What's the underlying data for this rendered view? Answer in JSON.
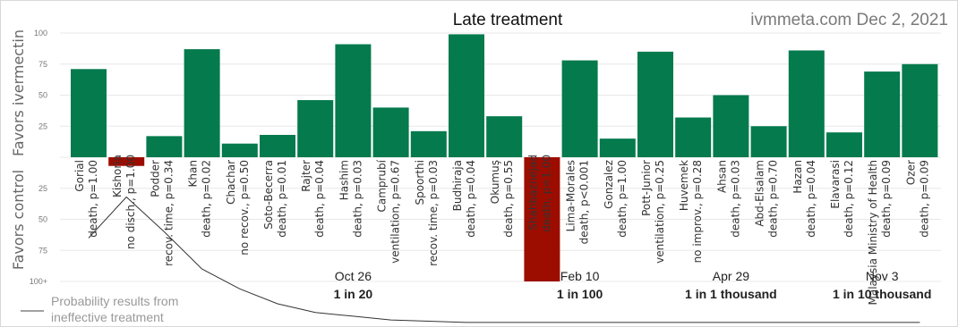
{
  "chart_data": {
    "type": "bar",
    "title": "Late treatment",
    "source": "ivmmeta.com Dec 2, 2021",
    "ylabel_top": "Favors ivermectin",
    "ylabel_bottom": "Favors control",
    "ylim": [
      -100,
      100
    ],
    "yticks": [
      {
        "v": 100,
        "label": "100"
      },
      {
        "v": 75,
        "label": "75"
      },
      {
        "v": 50,
        "label": "50"
      },
      {
        "v": 25,
        "label": "25"
      },
      {
        "v": -25,
        "label": "25"
      },
      {
        "v": -50,
        "label": "50"
      },
      {
        "v": -75,
        "label": "75"
      },
      {
        "v": -100,
        "label": "100+"
      }
    ],
    "colors": {
      "positive": "#047a4d",
      "negative": "#9c0d00",
      "line": "#333333",
      "grid": "#e8e8e8"
    },
    "categories": [
      {
        "study": "Gorial",
        "outcome": "death, p=1.00"
      },
      {
        "study": "Kishoria",
        "outcome": "no disch., p=1.00"
      },
      {
        "study": "Podder",
        "outcome": "recov. time, p=0.34"
      },
      {
        "study": "Khan",
        "outcome": "death, p=0.02"
      },
      {
        "study": "Chachar",
        "outcome": "no recov., p=0.50"
      },
      {
        "study": "Soto-Becerra",
        "outcome": "death, p=0.01"
      },
      {
        "study": "Rajter",
        "outcome": "death, p=0.04"
      },
      {
        "study": "Hashim",
        "outcome": "death, p=0.03"
      },
      {
        "study": "Camprubí",
        "outcome": "ventilation, p=0.67"
      },
      {
        "study": "Spoorthi",
        "outcome": "recov. time, p=0.03"
      },
      {
        "study": "Budhiraja",
        "outcome": "death, p=0.04"
      },
      {
        "study": "Okumuş",
        "outcome": "death, p=0.55"
      },
      {
        "study": "Shahbaznejad",
        "outcome": "death, p=1.00"
      },
      {
        "study": "Lima-Morales",
        "outcome": "death, p<0.001"
      },
      {
        "study": "Gonzalez",
        "outcome": "death, p=1.00"
      },
      {
        "study": "Pott-Junior",
        "outcome": "ventilation, p=0.25"
      },
      {
        "study": "Huvemek",
        "outcome": "no improv., p=0.28"
      },
      {
        "study": "Ahsan",
        "outcome": "death, p=0.03"
      },
      {
        "study": "Abd-Elsalam",
        "outcome": "death, p=0.70"
      },
      {
        "study": "Hazan",
        "outcome": "death, p=0.04"
      },
      {
        "study": "Elavarasi",
        "outcome": "death, p=0.12"
      },
      {
        "study": "Malaysia Ministry of Health",
        "outcome": "death, p=0.09"
      },
      {
        "study": "Ozer",
        "outcome": "death, p=0.09"
      }
    ],
    "values": [
      71,
      -7,
      17,
      87,
      11,
      18,
      46,
      91,
      40,
      21,
      99,
      33,
      -100,
      78,
      15,
      85,
      32,
      50,
      25,
      86,
      20,
      69,
      75
    ],
    "probability_curve": {
      "label_line1": "Probability results from",
      "label_line2": "ineffective treatment",
      "y": [
        -65,
        -32,
        -60,
        -90,
        -106,
        -118,
        -125,
        -128,
        -131,
        -132,
        -133,
        -133,
        -133,
        -133,
        -133,
        -133,
        -133,
        -133,
        -133,
        -133,
        -133,
        -133,
        -133
      ]
    },
    "annotations": [
      {
        "date": "Oct 26",
        "prob": "1 in 20",
        "x_index": 7
      },
      {
        "date": "Feb 10",
        "prob": "1 in 100",
        "x_index": 13
      },
      {
        "date": "Apr 29",
        "prob": "1 in 1 thousand",
        "x_index": 17
      },
      {
        "date": "Nov 3",
        "prob": "1 in 10 thousand",
        "x_index": 21
      }
    ]
  }
}
